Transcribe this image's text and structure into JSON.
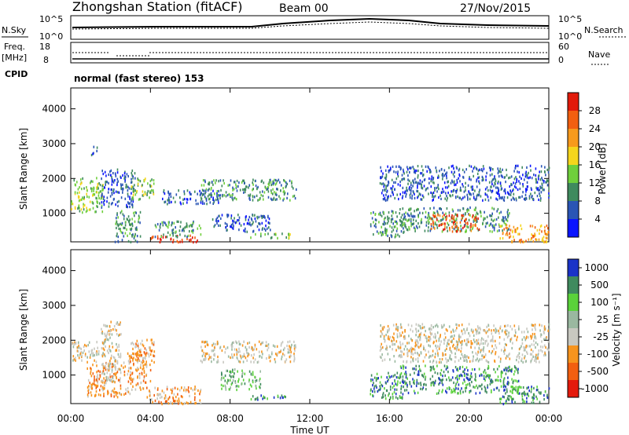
{
  "header": {
    "station": "Zhongshan Station (fitACF)",
    "beam": "Beam 00",
    "date": "27/Nov/2015"
  },
  "status_panels": {
    "nsky_label": "N.Sky",
    "nsky_ticks": [
      "10^5",
      "10^0"
    ],
    "nsearch_label": "N.Search",
    "nsearch_ticks": [
      "10^5",
      "10^0"
    ],
    "freq_label": "Freq.",
    "freq_unit": "[MHz]",
    "freq_ticks": [
      "18",
      "8"
    ],
    "nave_label": "Nave",
    "nave_ticks": [
      "60",
      "0"
    ],
    "cpid_label": "CPID",
    "cpid_text": "normal (fast stereo) 153"
  },
  "colors": {
    "power": [
      "#0a14ff",
      "#2a55b5",
      "#3f8a5e",
      "#6fcf3c",
      "#f5d51c",
      "#f79a1c",
      "#f25f10",
      "#e21a0a"
    ],
    "velocity": [
      "#e41a0c",
      "#f25f10",
      "#f7941d",
      "#c8c8c0",
      "#9ab8a0",
      "#5ad23a",
      "#3f8a5e",
      "#1a33c8"
    ]
  },
  "chart_data": [
    {
      "type": "heatmap",
      "name_key": "power",
      "xlabel": "",
      "ylabel": "Slant Range [km]",
      "xlim_hours": [
        0,
        24
      ],
      "ylim_km": [
        180,
        4600
      ],
      "yticks": [
        "4000",
        "3000",
        "2000",
        "1000"
      ],
      "ytick_values": [
        4000,
        3000,
        2000,
        1000
      ],
      "colorbar_label": "Power [dB]",
      "colorbar_ticks": [
        "28",
        "24",
        "20",
        "16",
        "12",
        "8",
        "4"
      ],
      "colorbar_values": [
        28,
        24,
        20,
        16,
        12,
        8,
        4
      ],
      "colorbar_range": [
        0,
        32
      ],
      "regions": [
        {
          "t0": 0.0,
          "t1": 1.6,
          "r0": 1050,
          "r1": 2050,
          "level": 3
        },
        {
          "t0": 1.0,
          "t1": 1.3,
          "r0": 2700,
          "r1": 2980,
          "level": 1
        },
        {
          "t0": 1.5,
          "t1": 3.2,
          "r0": 1200,
          "r1": 2300,
          "level": 1
        },
        {
          "t0": 2.2,
          "t1": 3.5,
          "r0": 200,
          "r1": 1100,
          "level": 2
        },
        {
          "t0": 3.0,
          "t1": 4.2,
          "r0": 1400,
          "r1": 2050,
          "level": 3
        },
        {
          "t0": 4.0,
          "t1": 6.4,
          "r0": 200,
          "r1": 400,
          "level": 7
        },
        {
          "t0": 4.2,
          "t1": 6.5,
          "r0": 350,
          "r1": 800,
          "level": 2
        },
        {
          "t0": 4.5,
          "t1": 7.5,
          "r0": 1300,
          "r1": 1700,
          "level": 1
        },
        {
          "t0": 6.5,
          "t1": 11.3,
          "r0": 1400,
          "r1": 2000,
          "level": 2
        },
        {
          "t0": 7.0,
          "t1": 10.0,
          "r0": 500,
          "r1": 1000,
          "level": 1
        },
        {
          "t0": 9.0,
          "t1": 11.0,
          "r0": 300,
          "r1": 450,
          "level": 3
        },
        {
          "t0": 15.0,
          "t1": 16.7,
          "r0": 350,
          "r1": 1100,
          "level": 2
        },
        {
          "t0": 15.5,
          "t1": 24.0,
          "r0": 1400,
          "r1": 2400,
          "level": 1
        },
        {
          "t0": 16.5,
          "t1": 22.0,
          "r0": 500,
          "r1": 1200,
          "level": 2
        },
        {
          "t0": 18.0,
          "t1": 20.5,
          "r0": 500,
          "r1": 1000,
          "level": 6
        },
        {
          "t0": 21.5,
          "t1": 24.0,
          "r0": 200,
          "r1": 700,
          "level": 5
        }
      ]
    },
    {
      "type": "heatmap",
      "name_key": "velocity",
      "xlabel": "Time UT",
      "ylabel": "Slant Range [km]",
      "xlim_hours": [
        0,
        24
      ],
      "ylim_km": [
        180,
        4600
      ],
      "xticks": [
        "00:00",
        "04:00",
        "08:00",
        "12:00",
        "16:00",
        "20:00",
        "00:00"
      ],
      "xtick_values": [
        0,
        4,
        8,
        12,
        16,
        20,
        24
      ],
      "yticks": [
        "4000",
        "3000",
        "2000",
        "1000"
      ],
      "ytick_values": [
        4000,
        3000,
        2000,
        1000
      ],
      "colorbar_label": "Velocity [m s⁻¹]",
      "colorbar_ticks": [
        "1000",
        "500",
        "100",
        "25",
        "-25",
        "-100",
        "-500",
        "-1000"
      ],
      "regions": [
        {
          "t0": 0.0,
          "t1": 1.4,
          "r0": 1400,
          "r1": 2000,
          "level": 3
        },
        {
          "t0": 0.8,
          "t1": 3.0,
          "r0": 400,
          "r1": 1400,
          "level": 2
        },
        {
          "t0": 1.5,
          "t1": 2.5,
          "r0": 800,
          "r1": 2600,
          "level": 3
        },
        {
          "t0": 2.8,
          "t1": 4.0,
          "r0": 600,
          "r1": 1700,
          "level": 2
        },
        {
          "t0": 3.0,
          "t1": 4.2,
          "r0": 1400,
          "r1": 2050,
          "level": 2
        },
        {
          "t0": 3.8,
          "t1": 6.5,
          "r0": 200,
          "r1": 700,
          "level": 2
        },
        {
          "t0": 6.5,
          "t1": 11.3,
          "r0": 1400,
          "r1": 2000,
          "level": 3
        },
        {
          "t0": 7.5,
          "t1": 9.5,
          "r0": 600,
          "r1": 1200,
          "level": 5
        },
        {
          "t0": 9.0,
          "t1": 11.0,
          "r0": 300,
          "r1": 450,
          "level": 6
        },
        {
          "t0": 15.0,
          "t1": 16.7,
          "r0": 350,
          "r1": 1100,
          "level": 6
        },
        {
          "t0": 15.5,
          "t1": 24.0,
          "r0": 1400,
          "r1": 2500,
          "level": 3
        },
        {
          "t0": 16.5,
          "t1": 22.5,
          "r0": 500,
          "r1": 1300,
          "level": 6
        },
        {
          "t0": 21.5,
          "t1": 24.0,
          "r0": 200,
          "r1": 700,
          "level": 6
        }
      ]
    }
  ]
}
